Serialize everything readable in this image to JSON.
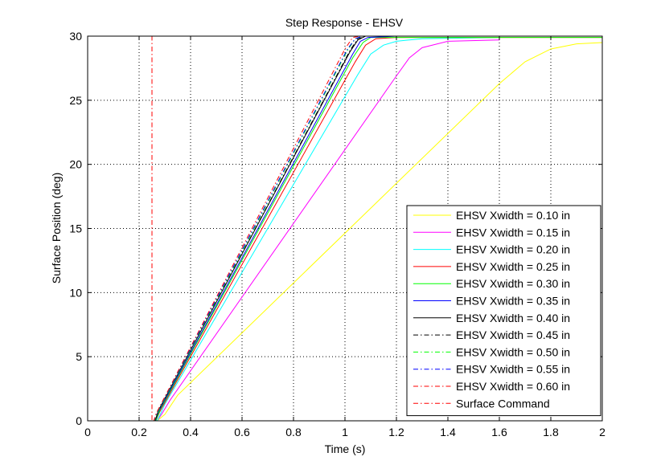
{
  "chart_data": {
    "type": "line",
    "title": "Step Response - EHSV",
    "xlabel": "Time (s)",
    "ylabel": "Surface Position (deg)",
    "xlim": [
      0,
      2
    ],
    "ylim": [
      0,
      30
    ],
    "xticks": [
      0,
      0.2,
      0.4,
      0.6,
      0.8,
      1,
      1.2,
      1.4,
      1.6,
      1.8,
      2
    ],
    "xtick_labels": [
      "0",
      "0.2",
      "0.4",
      "0.6",
      "0.8",
      "1",
      "1.2",
      "1.4",
      "1.6",
      "1.8",
      "2"
    ],
    "yticks": [
      0,
      5,
      10,
      15,
      20,
      25,
      30
    ],
    "ytick_labels": [
      "0",
      "5",
      "10",
      "15",
      "20",
      "25",
      "30"
    ],
    "grid": true,
    "legend_position": "bottom-right",
    "series": [
      {
        "name": "EHSV Xwidth = 0.10 in",
        "color": "#ffff00",
        "dash": "solid",
        "x": [
          0,
          0.27,
          0.3,
          0.35,
          1.6,
          1.7,
          1.8,
          1.9,
          2.0
        ],
        "y": [
          0,
          0,
          0.5,
          2.0,
          26.3,
          28.0,
          29.0,
          29.4,
          29.5
        ]
      },
      {
        "name": "EHSV Xwidth = 0.15 in",
        "color": "#ff00ff",
        "dash": "solid",
        "x": [
          0,
          0.27,
          0.29,
          0.32,
          1.2,
          1.25,
          1.3,
          1.4,
          1.6
        ],
        "y": [
          0,
          0,
          0.6,
          1.6,
          26.9,
          28.3,
          29.1,
          29.6,
          29.7
        ]
      },
      {
        "name": "EHSV Xwidth = 0.20 in",
        "color": "#00ffff",
        "dash": "solid",
        "x": [
          0,
          0.27,
          0.28,
          0.3,
          1.05,
          1.1,
          1.15,
          1.2,
          1.3,
          1.6
        ],
        "y": [
          0,
          0,
          0.4,
          1.3,
          27.0,
          28.6,
          29.3,
          29.6,
          29.8,
          29.9
        ]
      },
      {
        "name": "EHSV Xwidth = 0.25 in",
        "color": "#ff0000",
        "dash": "solid",
        "x": [
          0,
          0.265,
          0.28,
          1.04,
          1.08,
          1.12,
          1.2,
          2.0
        ],
        "y": [
          0,
          0,
          0.7,
          28.0,
          29.3,
          29.8,
          29.9,
          29.9
        ]
      },
      {
        "name": "EHSV Xwidth = 0.30 in",
        "color": "#00ff00",
        "dash": "solid",
        "x": [
          0,
          0.265,
          0.28,
          1.03,
          1.07,
          1.1,
          1.2,
          2.0
        ],
        "y": [
          0,
          0,
          0.8,
          28.3,
          29.5,
          29.9,
          29.9,
          29.9
        ]
      },
      {
        "name": "EHSV Xwidth = 0.35 in",
        "color": "#0000ff",
        "dash": "solid",
        "x": [
          0,
          0.263,
          0.275,
          1.03,
          1.06,
          1.09,
          1.2,
          2.0
        ],
        "y": [
          0,
          0,
          0.7,
          28.6,
          29.6,
          29.9,
          30.0,
          30.0
        ]
      },
      {
        "name": "EHSV Xwidth = 0.40 in",
        "color": "#000000",
        "dash": "solid",
        "x": [
          0,
          0.262,
          0.275,
          1.02,
          1.05,
          1.08,
          1.2,
          2.0
        ],
        "y": [
          0,
          0,
          0.8,
          28.8,
          29.7,
          30.0,
          30.0,
          30.0
        ]
      },
      {
        "name": "EHSV Xwidth = 0.45 in",
        "color": "#000000",
        "dash": "dashdot",
        "x": [
          0,
          0.26,
          0.27,
          1.02,
          1.05,
          1.08,
          1.2,
          2.0
        ],
        "y": [
          0,
          0,
          0.6,
          28.9,
          29.8,
          30.0,
          30.0,
          30.0
        ]
      },
      {
        "name": "EHSV Xwidth = 0.50 in",
        "color": "#00ff00",
        "dash": "dashdot",
        "x": [
          0,
          0.26,
          0.27,
          1.01,
          1.04,
          1.07,
          1.2,
          2.0
        ],
        "y": [
          0,
          0,
          0.6,
          28.9,
          29.8,
          30.0,
          30.0,
          30.0
        ]
      },
      {
        "name": "EHSV Xwidth = 0.55 in",
        "color": "#0000ff",
        "dash": "dashdot",
        "x": [
          0,
          0.258,
          0.268,
          1.01,
          1.04,
          1.07,
          1.2,
          2.0
        ],
        "y": [
          0,
          0,
          0.6,
          29.0,
          29.8,
          30.0,
          30.0,
          30.0
        ]
      },
      {
        "name": "EHSV Xwidth = 0.60 in",
        "color": "#ff0000",
        "dash": "dashdot",
        "x": [
          0,
          0.257,
          0.267,
          1.0,
          1.03,
          1.06,
          1.2,
          2.0
        ],
        "y": [
          0,
          0,
          0.6,
          29.0,
          29.9,
          30.0,
          30.0,
          30.0
        ]
      },
      {
        "name": "Surface Command",
        "color": "#ff0000",
        "dash": "dashdot",
        "x": [
          0,
          0.25,
          0.25,
          2.0
        ],
        "y": [
          0,
          0,
          30,
          30
        ]
      }
    ]
  }
}
